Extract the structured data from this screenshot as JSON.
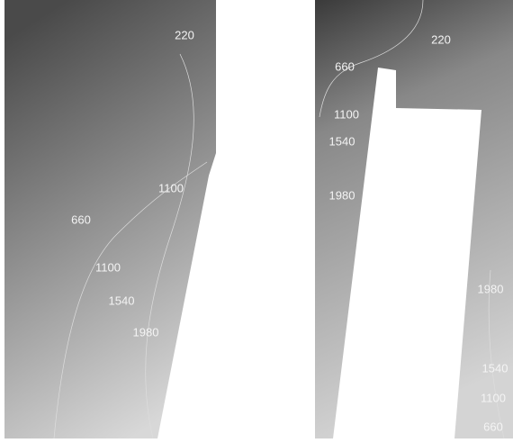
{
  "panels": [
    {
      "contour_labels": [
        220,
        1100,
        660,
        1100,
        1540,
        1980
      ]
    },
    {
      "contour_labels": [
        220,
        660,
        1100,
        1540,
        1980,
        1980,
        1540,
        1100,
        660
      ]
    }
  ]
}
